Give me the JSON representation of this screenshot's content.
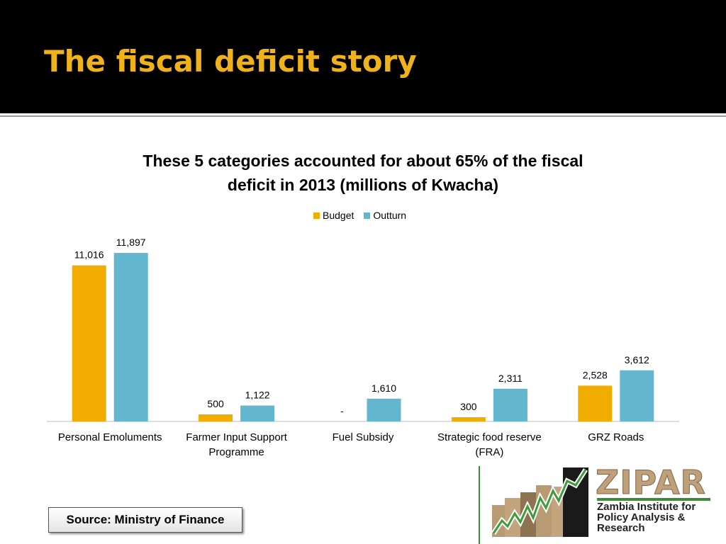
{
  "slide": {
    "title": "The fiscal deficit story"
  },
  "chart_data": {
    "type": "bar",
    "title_lines": [
      "These 5 categories accounted for about 65% of the fiscal",
      "deficit in 2013 (millions of Kwacha)"
    ],
    "categories": [
      [
        "Personal Emoluments"
      ],
      [
        "Farmer Input Support",
        "Programme"
      ],
      [
        "Fuel Subsidy"
      ],
      [
        "Strategic food reserve",
        "(FRA)"
      ],
      [
        "GRZ Roads"
      ]
    ],
    "series": [
      {
        "name": "Budget",
        "color": "#f0ad00",
        "values": [
          11016,
          500,
          0,
          300,
          2528
        ],
        "labels": [
          "11,016",
          "500",
          "-",
          "300",
          "2,528"
        ]
      },
      {
        "name": "Outturn",
        "color": "#62b6cd",
        "values": [
          11897,
          1122,
          1610,
          2311,
          3612
        ],
        "labels": [
          "11,897",
          "1,122",
          "1,610",
          "2,311",
          "3,612"
        ]
      }
    ],
    "ylim": [
      0,
      12000
    ],
    "grid": false,
    "legend_position": "top-center",
    "xlabel": "",
    "ylabel": ""
  },
  "source": {
    "text": "Source: Ministry of Finance"
  },
  "logo": {
    "wordmark": "ZIPAR",
    "subtitle_lines": [
      "Zambia Institute for",
      "Policy Analysis &",
      "Research"
    ]
  }
}
